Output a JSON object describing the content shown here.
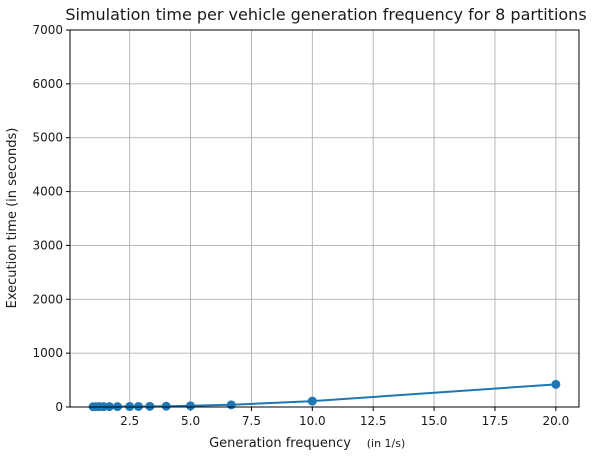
{
  "chart_data": {
    "type": "line",
    "title": "Simulation time per vehicle generation frequency for 8 partitions",
    "xlabel": "Generation frequency",
    "xlabel_unit": "(in 1/s)",
    "ylabel": "Execution time (in seconds)",
    "xlim": [
      0.05,
      20.95
    ],
    "ylim": [
      0,
      7000
    ],
    "xticks": [
      2.5,
      5.0,
      7.5,
      10.0,
      12.5,
      15.0,
      17.5,
      20.0
    ],
    "xtick_labels": [
      "2.5",
      "5.0",
      "7.5",
      "10.0",
      "12.5",
      "15.0",
      "17.5",
      "20.0"
    ],
    "yticks": [
      0,
      1000,
      2000,
      3000,
      4000,
      5000,
      6000,
      7000
    ],
    "ytick_labels": [
      "0",
      "1000",
      "2000",
      "3000",
      "4000",
      "5000",
      "6000",
      "7000"
    ],
    "grid": true,
    "series": [
      {
        "color": "#1f77b4",
        "x": [
          1.0,
          1.11,
          1.25,
          1.43,
          1.67,
          2.0,
          2.5,
          3.33,
          4.0,
          5.0,
          6.67,
          10.0,
          20.0
        ],
        "y": [
          5,
          5,
          6,
          6,
          7,
          8,
          9,
          12,
          15,
          22,
          40,
          110,
          420
        ]
      },
      {
        "color": "#1f77b4",
        "x": [
          2.86
        ],
        "y": [
          10
        ]
      }
    ]
  }
}
